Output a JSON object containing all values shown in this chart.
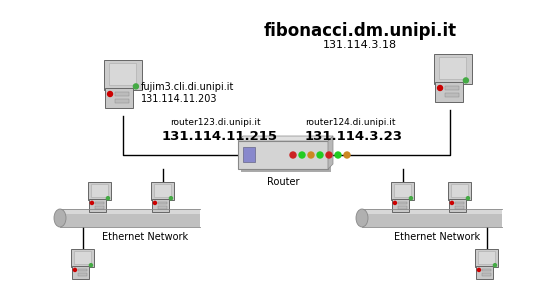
{
  "bg_color": "#ffffff",
  "fujim_name": "fujim3.cli.di.unipi.it",
  "fujim_ip": "131.114.11.203",
  "fibonacci_name": "fibonacci.dm.unipi.it",
  "fibonacci_ip": "131.114.3.18",
  "router123_name": "router123.di.unipi.it",
  "router123_ip": "131.114.11.215",
  "router124_name": "router124.di.unipi.it",
  "router124_ip": "131.114.3.23",
  "router_label": "Router",
  "left_net_label": "Ethernet Network",
  "right_net_label": "Ethernet Network",
  "text_color": "#000000",
  "line_color": "#000000"
}
